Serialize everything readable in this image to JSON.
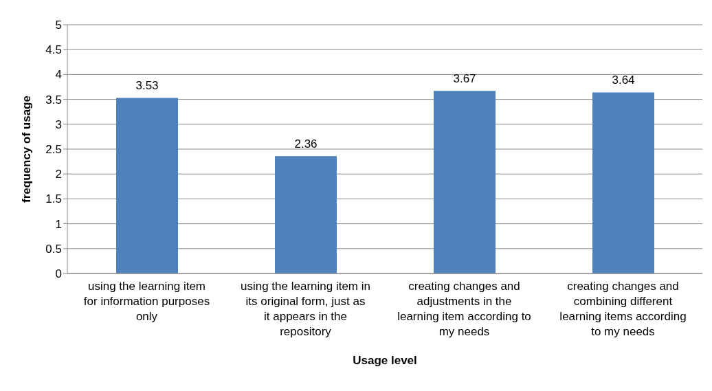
{
  "chart_data": {
    "type": "bar",
    "xlabel": "Usage level",
    "ylabel": "frequency of usage",
    "categories": [
      "using the learning item for information purposes only",
      "using the learning item in its original form, just as it appears in the repository",
      "creating changes and adjustments in the learning item according to my needs",
      "creating changes and combining different learning items according to my needs"
    ],
    "values": [
      3.53,
      2.36,
      3.67,
      3.64
    ],
    "color": "#4f81bd",
    "data_labels": true,
    "ylim": [
      0,
      5
    ],
    "yticks": [
      0,
      0.5,
      1,
      1.5,
      2,
      2.5,
      3,
      3.5,
      4,
      4.5,
      5
    ],
    "grid": "y"
  }
}
